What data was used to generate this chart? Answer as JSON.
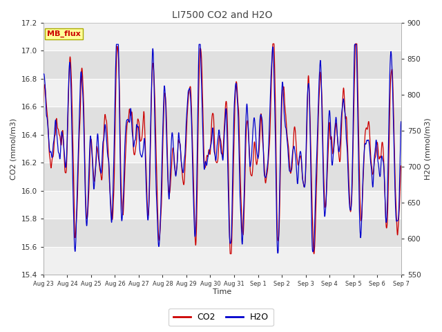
{
  "title": "LI7500 CO2 and H2O",
  "xlabel": "Time",
  "ylabel_left": "CO2 (mmol/m3)",
  "ylabel_right": "H2O (mmol/m3)",
  "co2_ylim": [
    15.4,
    17.2
  ],
  "h2o_ylim": [
    550,
    900
  ],
  "co2_yticks": [
    15.4,
    15.6,
    15.8,
    16.0,
    16.2,
    16.4,
    16.6,
    16.8,
    17.0,
    17.2
  ],
  "h2o_yticks": [
    550,
    600,
    650,
    700,
    750,
    800,
    850,
    900
  ],
  "x_tick_labels": [
    "Aug 23",
    "Aug 24",
    "Aug 25",
    "Aug 26",
    "Aug 27",
    "Aug 28",
    "Aug 29",
    "Aug 30",
    "Aug 31",
    "Sep 1",
    "Sep 2",
    "Sep 3",
    "Sep 4",
    "Sep 5",
    "Sep 6",
    "Sep 7"
  ],
  "co2_color": "#cc0000",
  "h2o_color": "#0000cc",
  "fig_bg_color": "#ffffff",
  "plot_bg_color": "#e8e8e8",
  "band_color_light": "#f0f0f0",
  "band_color_dark": "#e0e0e0",
  "legend_label_co2": "CO2",
  "legend_label_h2o": "H2O",
  "annotation_text": "MB_flux",
  "annotation_bg": "#ffff99",
  "annotation_border": "#aaaa00",
  "title_color": "#444444",
  "seed": 12345,
  "n_points": 2000
}
